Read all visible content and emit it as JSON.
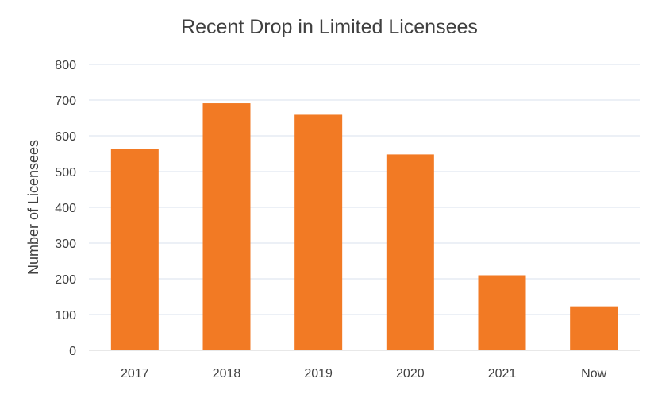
{
  "chart_data": {
    "type": "bar",
    "title": "Recent Drop in Limited Licensees",
    "xlabel": "",
    "ylabel": "Number of Licensees",
    "categories": [
      "2017",
      "2018",
      "2019",
      "2020",
      "2021",
      "Now"
    ],
    "values": [
      563,
      691,
      659,
      548,
      210,
      123
    ],
    "ylim": [
      0,
      800
    ],
    "yticks": [
      0,
      100,
      200,
      300,
      400,
      500,
      600,
      700,
      800
    ],
    "yticks_labels": [
      "0",
      "100",
      "200",
      "300",
      "400",
      "500",
      "600",
      "700",
      "800"
    ],
    "grid": true,
    "legend": "none",
    "colors": {
      "bar": "#F27A24",
      "grid": "#D9E2EC",
      "text": "#404040"
    }
  }
}
